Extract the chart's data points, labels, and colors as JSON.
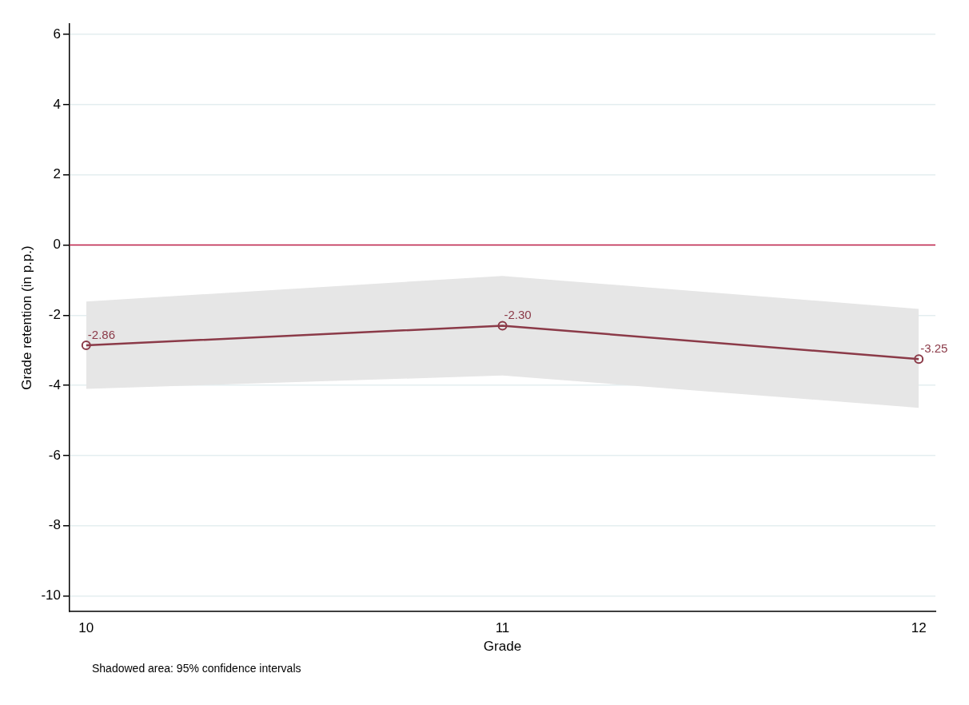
{
  "chart_data": {
    "type": "line",
    "xlabel": "Grade",
    "ylabel": "Grade retention (in p.p.)",
    "x": [
      10,
      11,
      12
    ],
    "series": [
      {
        "color": "#8b3a48",
        "values": [
          -2.86,
          -2.3,
          -3.25
        ],
        "lower": [
          -4.1,
          -3.72,
          -4.64
        ],
        "upper": [
          -1.61,
          -0.88,
          -1.82
        ],
        "value_labels": [
          "-2.86",
          "-2.30",
          "-3.25"
        ]
      }
    ],
    "xlim": [
      9.96,
      12.04
    ],
    "xticks": [
      10,
      11,
      12
    ],
    "ylim": [
      -10.45,
      6.3
    ],
    "yticks": [
      -10,
      -8,
      -6,
      -4,
      -2,
      0,
      2,
      4,
      6
    ],
    "ref_lines": [
      {
        "axis": "y",
        "value": 0,
        "color": "#c0204a"
      }
    ],
    "grid": "y",
    "marker": "circle",
    "line_style": "solid",
    "legend": false,
    "annotations": [
      "Shadowed area: 95% confidence intervals"
    ]
  }
}
